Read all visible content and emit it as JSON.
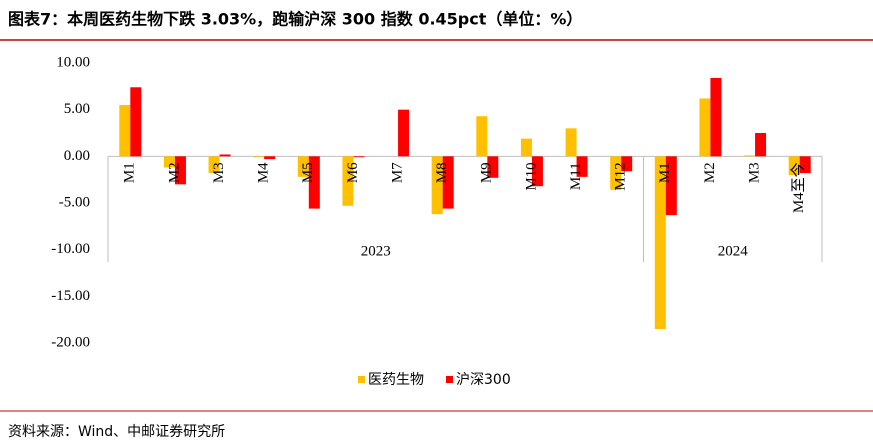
{
  "chart_data": {
    "type": "bar",
    "title": "图表7：本周医药生物下跌 3.03%，跑输沪深 300 指数 0.45pct（单位：%）",
    "source": "资料来源：Wind、中邮证券研究所",
    "groups": [
      {
        "label": "2023",
        "categories": [
          "M1",
          "M2",
          "M3",
          "M4",
          "M5",
          "M6",
          "M7",
          "M8",
          "M9",
          "M10",
          "M11",
          "M12"
        ]
      },
      {
        "label": "2024",
        "categories": [
          "M1",
          "M2",
          "M3",
          "M4至今"
        ]
      }
    ],
    "series": [
      {
        "name": "医药生物",
        "color": "#FFC000",
        "values": [
          5.5,
          -1.2,
          -1.8,
          -0.1,
          -2.2,
          -5.3,
          0.0,
          -6.2,
          4.3,
          1.9,
          3.0,
          -3.6,
          -18.5,
          6.2,
          0.1,
          -2.0
        ]
      },
      {
        "name": "沪深300",
        "color": "#FF0000",
        "values": [
          7.4,
          -3.0,
          0.2,
          -0.3,
          -5.6,
          -0.1,
          5.0,
          -5.6,
          -2.3,
          -3.2,
          -2.2,
          -1.6,
          -6.3,
          8.4,
          2.5,
          -1.8
        ]
      }
    ],
    "ylim": [
      -20,
      10
    ],
    "yticks": [
      {
        "value": -20,
        "label": "-20.00"
      },
      {
        "value": -15,
        "label": "-15.00"
      },
      {
        "value": -10,
        "label": "-10.00"
      },
      {
        "value": -5,
        "label": "-5.00"
      },
      {
        "value": 0,
        "label": "0.00"
      },
      {
        "value": 5,
        "label": "5.00"
      },
      {
        "value": 10,
        "label": "10.00"
      }
    ],
    "legend": "bottom"
  }
}
